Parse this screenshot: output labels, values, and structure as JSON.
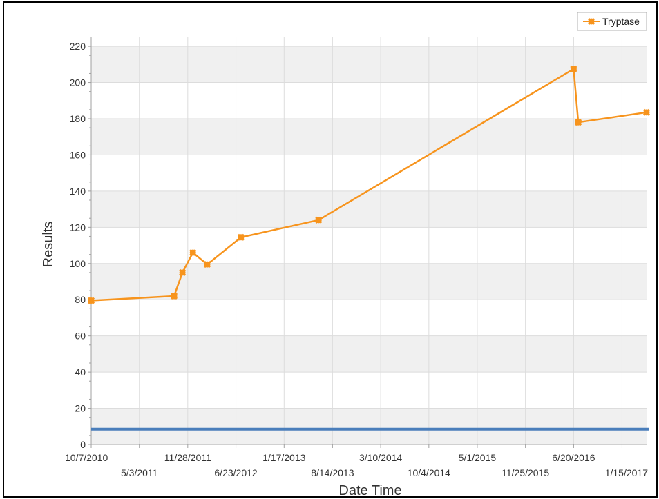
{
  "chart_data": {
    "type": "line",
    "title": "",
    "xlabel": "Date Time",
    "ylabel": "Results",
    "ylim": [
      0,
      225
    ],
    "yticks": [
      0,
      20,
      40,
      60,
      80,
      100,
      120,
      140,
      160,
      180,
      200,
      220
    ],
    "xlim": [
      "2010-10-07",
      "2017-05-01"
    ],
    "xticks": [
      {
        "label": "10/7/2010",
        "date": "2010-10-07"
      },
      {
        "label": "5/3/2011",
        "date": "2011-05-03"
      },
      {
        "label": "11/28/2011",
        "date": "2011-11-28"
      },
      {
        "label": "6/23/2012",
        "date": "2012-06-23"
      },
      {
        "label": "1/17/2013",
        "date": "2013-01-17"
      },
      {
        "label": "8/14/2013",
        "date": "2013-08-14"
      },
      {
        "label": "3/10/2014",
        "date": "2014-03-10"
      },
      {
        "label": "10/4/2014",
        "date": "2014-10-04"
      },
      {
        "label": "5/1/2015",
        "date": "2015-05-01"
      },
      {
        "label": "11/25/2015",
        "date": "2015-11-25"
      },
      {
        "label": "6/20/2016",
        "date": "2016-06-20"
      },
      {
        "label": "1/15/2017",
        "date": "2017-01-15"
      }
    ],
    "grid": true,
    "legend": "top-right",
    "series": [
      {
        "name": "Tryptase",
        "color": "#f7941d",
        "marker": "x",
        "points": [
          {
            "x": "2010-10-07",
            "y": 79.5
          },
          {
            "x": "2011-09-30",
            "y": 82
          },
          {
            "x": "2011-11-05",
            "y": 95
          },
          {
            "x": "2011-12-20",
            "y": 106
          },
          {
            "x": "2012-02-20",
            "y": 99.5
          },
          {
            "x": "2012-07-15",
            "y": 114.5
          },
          {
            "x": "2013-06-15",
            "y": 124
          },
          {
            "x": "2016-06-20",
            "y": 207.5
          },
          {
            "x": "2016-07-10",
            "y": 178
          },
          {
            "x": "2017-05-01",
            "y": 183.5
          }
        ]
      }
    ],
    "reference_line": {
      "y": 8.5,
      "color": "#4a7ebb"
    }
  },
  "colors": {
    "band": "#f0f0f0",
    "grid": "#dcdcdc",
    "axis": "#a0a0a0"
  }
}
